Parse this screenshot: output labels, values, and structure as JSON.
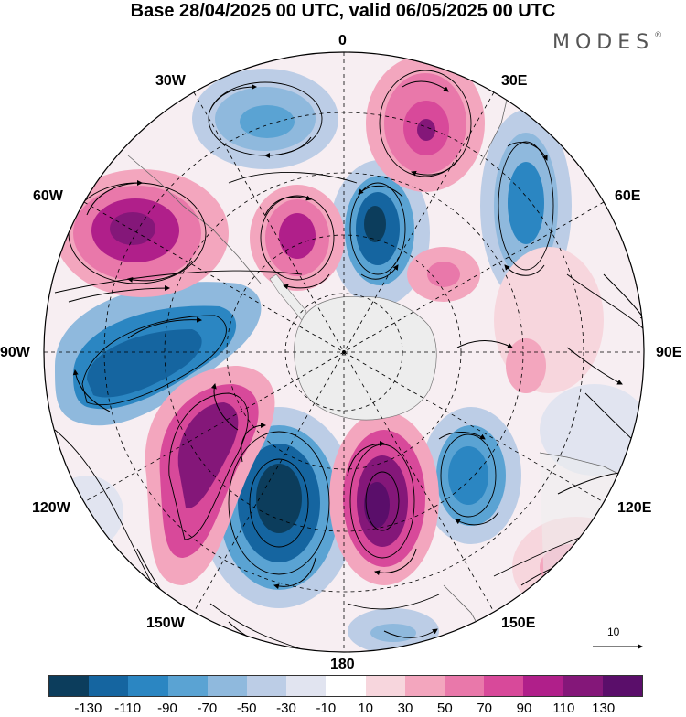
{
  "title": "Base 28/04/2025 00 UTC, valid 06/05/2025 00 UTC",
  "brand": "MODES",
  "brand_mark": "®",
  "longitude_labels": {
    "top": "0",
    "top_right": "30E",
    "right_upper": "60E",
    "right": "90E",
    "right_lower": "120E",
    "bottom_right": "150E",
    "bottom": "180",
    "bottom_left": "150W",
    "left_lower": "120W",
    "left": "90W",
    "left_upper": "60W",
    "top_left": "30W"
  },
  "vector_scale": {
    "label": "10",
    "arrow": "right-arrow-icon"
  },
  "colorbar": {
    "colors": [
      "#0c3d5c",
      "#1565a0",
      "#2b86c2",
      "#5aa3d3",
      "#8fb9dd",
      "#bccde6",
      "#e1e4f0",
      "#ffffff",
      "#f7d6dd",
      "#f3a6be",
      "#e978aa",
      "#d8499a",
      "#b01f8a",
      "#841779",
      "#5a0e6a"
    ],
    "tick_labels": [
      "-130",
      "-110",
      "-90",
      "-70",
      "-50",
      "-30",
      "-10",
      "10",
      "30",
      "50",
      "70",
      "90",
      "110",
      "130"
    ]
  },
  "legend_colors": {
    "negative_strong": "#1a5a8c",
    "positive_strong": "#8a1278",
    "land": "#ededed"
  }
}
